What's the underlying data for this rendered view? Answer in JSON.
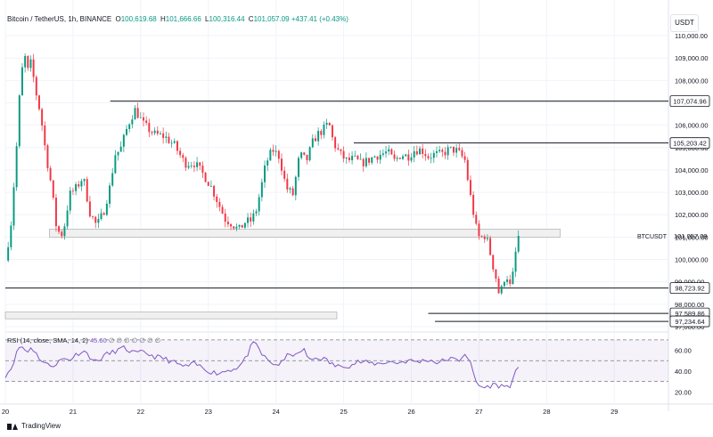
{
  "header": {
    "symbol": "Bitcoin / TetherUS, 1h, BINANCE",
    "o_label": "O",
    "o": "100,619.68",
    "h_label": "H",
    "h": "101,666.66",
    "l_label": "L",
    "l": "100,316.44",
    "c_label": "C",
    "c": "101,057.09",
    "change": "+437.41 (+0.43%)"
  },
  "currency_button": "USDT",
  "footer": {
    "brand": "TradingView"
  },
  "colors": {
    "up": "#089981",
    "down": "#f23645",
    "rsi": "#7e57c2",
    "rsi_band": "#7e57c2",
    "level_line": "#131722",
    "zone_fill": "#f0f0f0"
  },
  "chart_data": [
    {
      "type": "candlestick",
      "title": "Bitcoin / TetherUS, 1h, BINANCE",
      "x_axis": {
        "type": "date",
        "tick_labels": [
          "20",
          "21",
          "22",
          "23",
          "24",
          "25",
          "26",
          "27",
          "28",
          "29"
        ],
        "range": [
          20.0,
          29.8
        ]
      },
      "y_axis": {
        "position": "right",
        "range": [
          96800,
          110400
        ],
        "tick_labels": [
          "110,000.00",
          "109,000.00",
          "108,000.00",
          "107,000.00",
          "106,000.00",
          "105,000.00",
          "104,000.00",
          "103,000.00",
          "102,000.00",
          "101,000.00",
          "100,000.00",
          "99,000.00",
          "98,000.00",
          "97,000.00"
        ],
        "ticks": [
          110000,
          109000,
          108000,
          107000,
          106000,
          105000,
          104000,
          103000,
          102000,
          101000,
          100000,
          99000,
          98000,
          97000
        ]
      },
      "grid": true,
      "series": [
        {
          "anchors_day": [
            20.0,
            20.08,
            20.16,
            20.22,
            20.28,
            20.33,
            20.38,
            20.45,
            20.52,
            20.6,
            20.68,
            20.76,
            20.85,
            20.95,
            21.05,
            21.15,
            21.25,
            21.35,
            21.45,
            21.55,
            21.62,
            21.7,
            21.78,
            21.85,
            21.92,
            22.05,
            22.2,
            22.35,
            22.5,
            22.65,
            22.8,
            22.95,
            23.05,
            23.15,
            23.25,
            23.35,
            23.45,
            23.55,
            23.62,
            23.7,
            23.78,
            23.85,
            23.95,
            24.05,
            24.15,
            24.25,
            24.35,
            24.45,
            24.55,
            24.62,
            24.7,
            24.78,
            24.85,
            24.95,
            25.05,
            25.15,
            25.25,
            25.35,
            25.45,
            25.55,
            25.65,
            25.75,
            25.85,
            25.95,
            26.05,
            26.15,
            26.25,
            26.35,
            26.45,
            26.55,
            26.65,
            26.72,
            26.8,
            26.85,
            26.9,
            26.95,
            27.0,
            27.05,
            27.1,
            27.15,
            27.2,
            27.25,
            27.3,
            27.35,
            27.4,
            27.45,
            27.5,
            27.55,
            27.6
          ],
          "anchors_price": [
            99950,
            101500,
            104700,
            107800,
            109200,
            108400,
            108800,
            107500,
            106500,
            104700,
            103300,
            101300,
            101100,
            102900,
            103200,
            103700,
            102100,
            101500,
            102100,
            103300,
            104700,
            104900,
            105700,
            106300,
            106700,
            106000,
            105600,
            105500,
            105100,
            104300,
            104300,
            103700,
            103200,
            102500,
            101800,
            101600,
            101300,
            101700,
            101700,
            102100,
            103200,
            104300,
            104900,
            104600,
            103200,
            102900,
            104700,
            104400,
            105300,
            105600,
            105800,
            106100,
            105200,
            104700,
            104400,
            104500,
            104300,
            104400,
            104600,
            104700,
            104800,
            104400,
            104700,
            104600,
            104900,
            104900,
            104600,
            104700,
            104700,
            104900,
            104900,
            104700,
            104400,
            103200,
            102400,
            101500,
            101000,
            101000,
            101100,
            100500,
            99800,
            99200,
            98400,
            98800,
            99500,
            98700,
            99300,
            100500,
            101050
          ]
        }
      ],
      "horizontal_lines": [
        {
          "value": 107074.96,
          "label": "107,074.96",
          "from_day": 21.55
        },
        {
          "value": 105203.42,
          "label": "105,203.42",
          "from_day": 25.15
        },
        {
          "value": 98723.92,
          "label": "98,723.92",
          "from_day": 20.0
        },
        {
          "value": 97589.86,
          "label": "97,589.86",
          "from_day": 26.25
        },
        {
          "value": 97234.64,
          "label": "97,234.64",
          "from_day": 26.35
        }
      ],
      "zones": [
        {
          "from_day": 20.65,
          "to_day": 28.2,
          "low": 101000,
          "high": 101350
        },
        {
          "from_day": 20.0,
          "to_day": 24.9,
          "low": 97350,
          "high": 97650
        }
      ],
      "last_price_label": "BTCUSDT",
      "last_price": "101,057.09"
    },
    {
      "type": "line",
      "title": "RSI (14, close, SMA, 14, 2)",
      "legend_values": [
        "45.60",
        "∅",
        "∅",
        "∅",
        "∅",
        "∅",
        "∅",
        "∅"
      ],
      "y_axis": {
        "range": [
          10,
          75
        ],
        "tick_labels": [
          "60.00",
          "40.00",
          "20.00"
        ],
        "ticks": [
          60,
          40,
          20
        ]
      },
      "band": {
        "upper": 70,
        "middle": 50,
        "lower": 30
      },
      "series": [
        {
          "name": "RSI",
          "anchors_day": [
            20.0,
            20.08,
            20.16,
            20.22,
            20.28,
            20.33,
            20.38,
            20.45,
            20.55,
            20.65,
            20.75,
            20.85,
            20.95,
            21.05,
            21.15,
            21.25,
            21.35,
            21.45,
            21.55,
            21.65,
            21.75,
            21.85,
            21.92,
            22.05,
            22.2,
            22.35,
            22.5,
            22.65,
            22.8,
            22.95,
            23.05,
            23.15,
            23.3,
            23.45,
            23.55,
            23.65,
            23.72,
            23.8,
            23.9,
            24.0,
            24.1,
            24.2,
            24.3,
            24.4,
            24.5,
            24.6,
            24.7,
            24.8,
            24.9,
            25.0,
            25.1,
            25.2,
            25.35,
            25.5,
            25.65,
            25.8,
            25.95,
            26.1,
            26.25,
            26.4,
            26.55,
            26.7,
            26.8,
            26.88,
            26.95,
            27.02,
            27.1,
            27.2,
            27.3,
            27.4,
            27.48,
            27.55,
            27.6
          ],
          "values": [
            36,
            42,
            56,
            65,
            61,
            58,
            64,
            57,
            49,
            45,
            47,
            52,
            51,
            56,
            60,
            54,
            48,
            55,
            57,
            60,
            62,
            59,
            57,
            58,
            54,
            52,
            48,
            44,
            47,
            42,
            39,
            38,
            41,
            44,
            52,
            66,
            65,
            55,
            49,
            46,
            48,
            58,
            54,
            62,
            50,
            53,
            52,
            48,
            44,
            46,
            45,
            49,
            48,
            47,
            49,
            48,
            50,
            49,
            51,
            48,
            52,
            50,
            58,
            46,
            30,
            25,
            24,
            27,
            26,
            25,
            27,
            40,
            45.6
          ]
        }
      ]
    }
  ]
}
